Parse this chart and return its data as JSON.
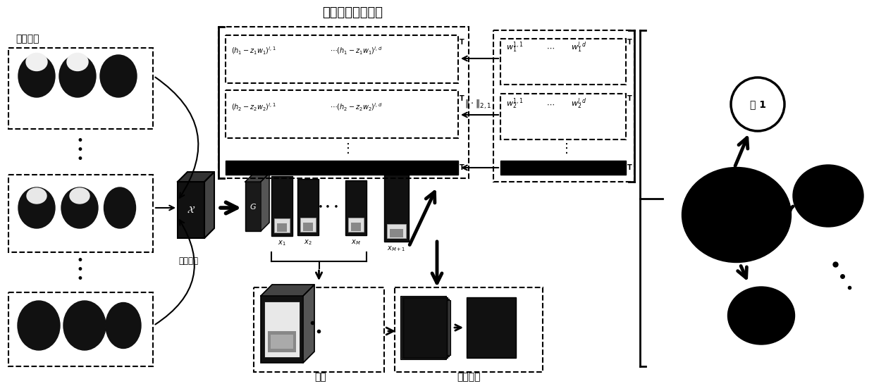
{
  "title": "判别鲁棒特征选择",
  "bg_color": "#ffffff",
  "black": "#000000",
  "white": "#ffffff",
  "training_label": "训练数据",
  "tucker_label": "塔克分解",
  "orthog_label": "正交",
  "lowrank_label": "低秩表示",
  "class_label": "类 1"
}
